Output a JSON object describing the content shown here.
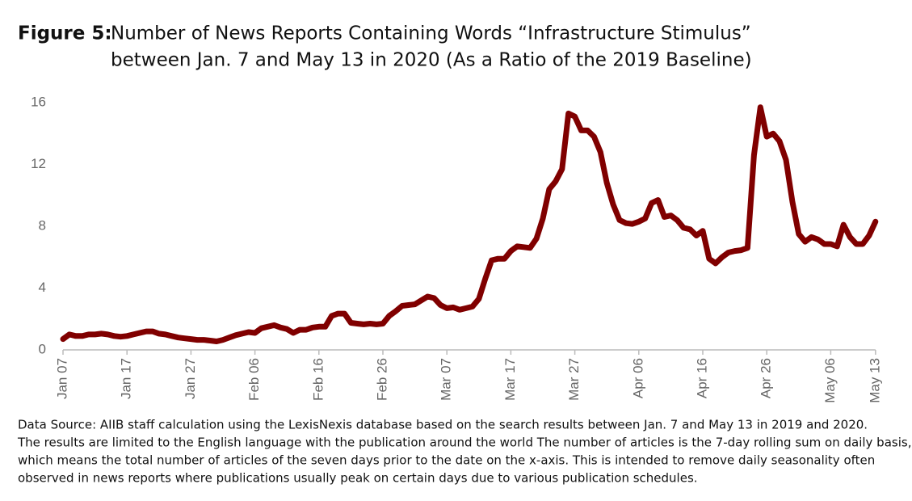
{
  "chart_data": {
    "type": "line",
    "figure_label": "Figure 5:",
    "title_lines": [
      "Number of News Reports Containing Words “Infrastructure Stimulus”",
      "between Jan. 7 and May 13 in 2020 (As a Ratio of the 2019 Baseline)"
    ],
    "footnote_lines": [
      "Data Source: AIIB staff calculation using the LexisNexis database based on the search results between Jan. 7 and May 13 in 2019 and 2020.",
      "The results are limited to the English language with the publication around the world The number of articles is the 7-day rolling sum on daily basis,",
      "which means the total number of articles of the seven days prior to the date on the x-axis. This is intended to remove daily seasonality often",
      "observed in news reports where publications usually peak on certain days due to various publication schedules."
    ],
    "categories": [
      "Jan 07",
      null,
      null,
      null,
      null,
      null,
      null,
      null,
      null,
      null,
      "Jan 17",
      null,
      null,
      null,
      null,
      null,
      null,
      null,
      null,
      null,
      "Jan 27",
      null,
      null,
      null,
      null,
      null,
      null,
      null,
      null,
      null,
      "Feb 06",
      null,
      null,
      null,
      null,
      null,
      null,
      null,
      null,
      null,
      "Feb 16",
      null,
      null,
      null,
      null,
      null,
      null,
      null,
      null,
      null,
      "Feb 26",
      null,
      null,
      null,
      null,
      null,
      null,
      null,
      null,
      null,
      "Mar 07",
      null,
      null,
      null,
      null,
      null,
      null,
      null,
      null,
      null,
      "Mar 17",
      null,
      null,
      null,
      null,
      null,
      null,
      null,
      null,
      null,
      "Mar 27",
      null,
      null,
      null,
      null,
      null,
      null,
      null,
      null,
      null,
      "Apr 06",
      null,
      null,
      null,
      null,
      null,
      null,
      null,
      null,
      null,
      "Apr 16",
      null,
      null,
      null,
      null,
      null,
      null,
      null,
      null,
      null,
      "Apr 26",
      null,
      null,
      null,
      null,
      null,
      null,
      null,
      null,
      null,
      "May 06",
      null,
      null,
      null,
      null,
      null,
      null,
      "May 13"
    ],
    "series": [
      {
        "name": "Ratio",
        "color": "#800000",
        "values": [
          0.7,
          1.0,
          0.9,
          0.9,
          1.0,
          1.0,
          1.05,
          1.0,
          0.9,
          0.85,
          0.9,
          1.0,
          1.1,
          1.2,
          1.2,
          1.05,
          1.0,
          0.9,
          0.8,
          0.75,
          0.7,
          0.65,
          0.65,
          0.6,
          0.55,
          0.65,
          0.8,
          0.95,
          1.05,
          1.15,
          1.1,
          1.4,
          1.5,
          1.6,
          1.45,
          1.35,
          1.1,
          1.3,
          1.3,
          1.45,
          1.5,
          1.5,
          2.2,
          2.35,
          2.35,
          1.75,
          1.7,
          1.65,
          1.7,
          1.65,
          1.7,
          2.2,
          2.5,
          2.85,
          2.9,
          2.95,
          3.2,
          3.45,
          3.35,
          2.9,
          2.7,
          2.75,
          2.6,
          2.7,
          2.8,
          3.3,
          4.6,
          5.8,
          5.9,
          5.9,
          6.4,
          6.7,
          6.65,
          6.6,
          7.2,
          8.5,
          10.4,
          10.9,
          11.7,
          15.3,
          15.1,
          14.2,
          14.2,
          13.8,
          12.8,
          10.8,
          9.4,
          8.4,
          8.2,
          8.15,
          8.3,
          8.5,
          9.5,
          9.7,
          8.6,
          8.7,
          8.4,
          7.9,
          7.8,
          7.4,
          7.7,
          5.9,
          5.6,
          6.0,
          6.3,
          6.4,
          6.45,
          6.6,
          12.6,
          15.7,
          13.8,
          14.0,
          13.5,
          12.3,
          9.6,
          7.5,
          7.0,
          7.3,
          7.15,
          6.85,
          6.85,
          6.7,
          8.1,
          7.3,
          6.85,
          6.85,
          7.4,
          8.3
        ]
      }
    ],
    "ylim": [
      0,
      16
    ],
    "yticks": [
      0,
      4,
      8,
      12,
      16
    ],
    "grid": false
  }
}
